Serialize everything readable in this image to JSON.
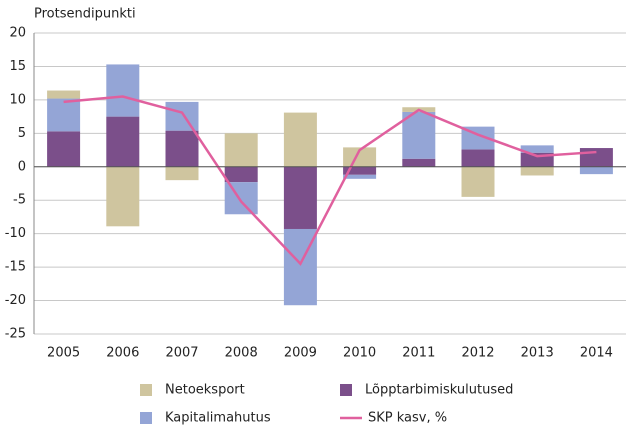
{
  "chart_data": {
    "type": "stacked-bar-line",
    "y_label": "Protsendipunkti",
    "categories": [
      "2005",
      "2006",
      "2007",
      "2008",
      "2009",
      "2010",
      "2011",
      "2012",
      "2013",
      "2014"
    ],
    "series": [
      {
        "name": "Netoeksport",
        "color": "#cfc59f",
        "type": "bar",
        "values": [
          1.2,
          -8.9,
          -2.0,
          5.0,
          8.1,
          2.9,
          0.7,
          -4.5,
          -1.3,
          0
        ]
      },
      {
        "name": "Lõpptarbimiskulutused",
        "color": "#7b4f8a",
        "type": "bar",
        "values": [
          5.3,
          7.5,
          5.4,
          -2.3,
          -9.3,
          -1.2,
          1.2,
          2.6,
          2.1,
          2.8
        ]
      },
      {
        "name": "Kapitalimahutus",
        "color": "#94a5d6",
        "type": "bar",
        "values": [
          4.9,
          7.8,
          4.3,
          -4.8,
          -11.4,
          -0.6,
          7.0,
          3.4,
          1.1,
          -1.1
        ]
      },
      {
        "name": "SKP kasv, %",
        "color": "#e0609e",
        "type": "line",
        "values": [
          9.7,
          10.5,
          8.1,
          -5.2,
          -14.5,
          2.5,
          8.5,
          4.8,
          1.6,
          2.2
        ]
      }
    ],
    "ylim": [
      -25,
      20
    ],
    "yticks": [
      -25,
      -20,
      -15,
      -10,
      -5,
      0,
      5,
      10,
      15,
      20
    ],
    "grid": true
  }
}
